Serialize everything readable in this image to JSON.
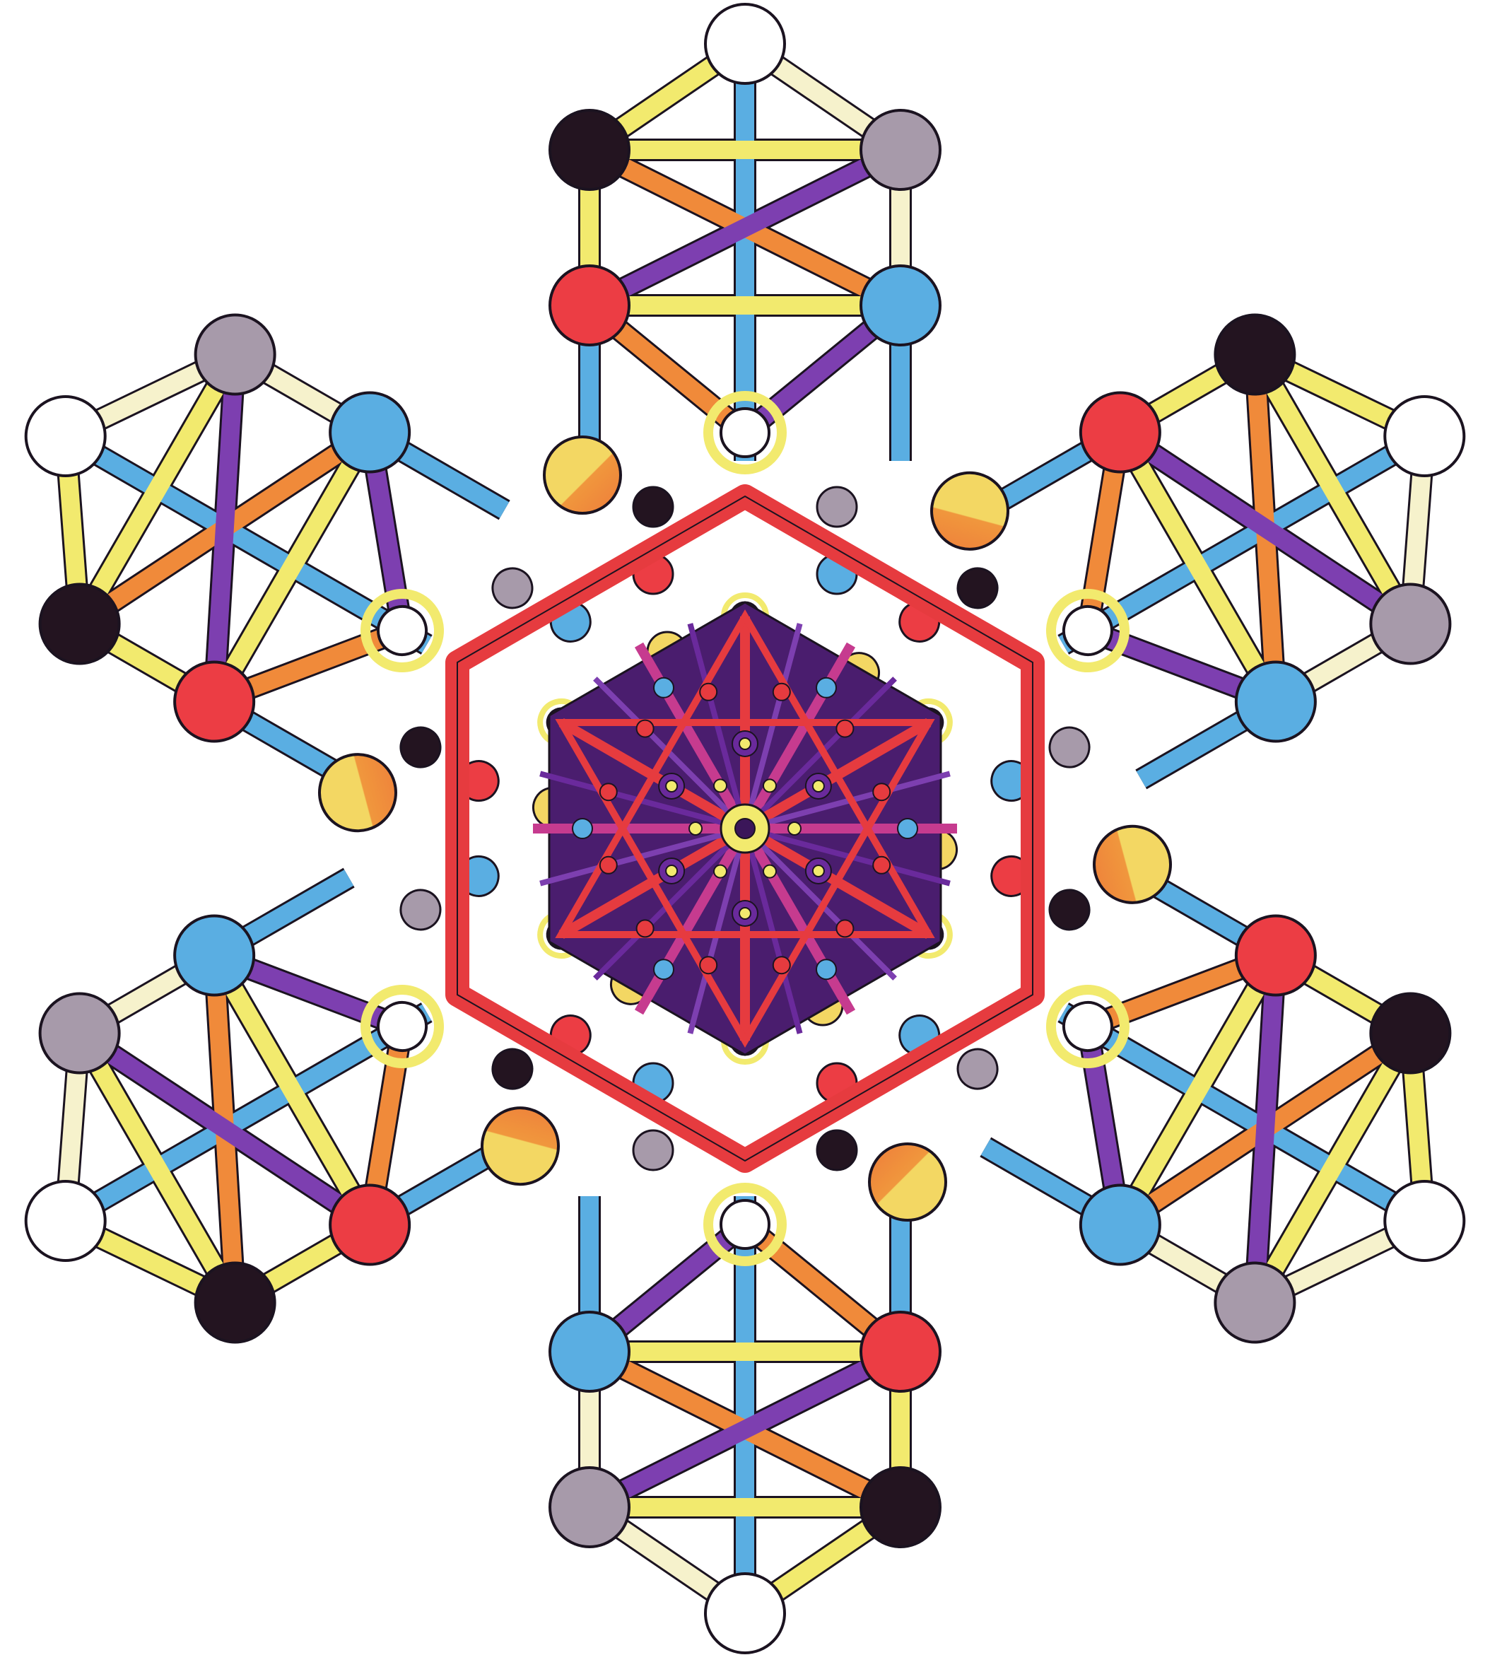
{
  "artwork": {
    "arms": 6,
    "arm_rotations_deg": [
      0,
      60,
      120,
      180,
      240,
      300
    ],
    "sephira_colors": {
      "white": "#ffffff",
      "black": "#231420",
      "grey": "#a79aaa",
      "red": "#ec3d44",
      "blue": "#5aaee2",
      "yellow_orange": "#f1d45e"
    },
    "path_colors": {
      "yellow": "#f2ea6e",
      "pale": "#f6f2cc",
      "blue": "#5aaee2",
      "purple": "#7d3fb0",
      "red": "#e63b3f",
      "orange": "#f08a3a"
    },
    "center_colors": {
      "dark_purple": "#3b1659",
      "violet": "#6a2a9c",
      "magenta": "#c63b8f"
    },
    "outline": "#1b1320"
  }
}
